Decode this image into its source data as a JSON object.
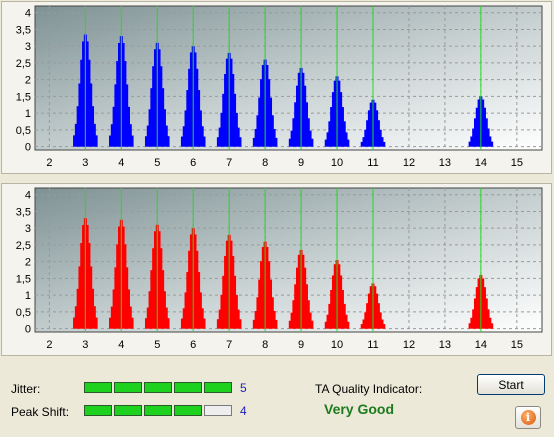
{
  "charts": {
    "x_ticks": [
      "2",
      "3",
      "4",
      "5",
      "6",
      "7",
      "8",
      "9",
      "10",
      "11",
      "12",
      "13",
      "14",
      "15"
    ],
    "y_ticks": [
      "0",
      "0,5",
      "1",
      "1,5",
      "2",
      "2,5",
      "3",
      "3,5",
      "4"
    ],
    "marker_positions": [
      3,
      4,
      5,
      6,
      7,
      8,
      9,
      10,
      11,
      14
    ],
    "colors": {
      "top_bars": "#0000ff",
      "bottom_bars": "#ff0000",
      "marker": "#22dd22",
      "grid": "#9a9a9a"
    }
  },
  "chart_data": [
    {
      "type": "bar",
      "name_hint": "top-histogram",
      "xlim": [
        1.6,
        15.7
      ],
      "ylim": [
        -0.1,
        4.2
      ],
      "clusters": [
        {
          "center": 3,
          "peak": 3.35
        },
        {
          "center": 4,
          "peak": 3.3
        },
        {
          "center": 5,
          "peak": 3.1
        },
        {
          "center": 6,
          "peak": 3.0
        },
        {
          "center": 7,
          "peak": 2.8
        },
        {
          "center": 8,
          "peak": 2.6
        },
        {
          "center": 9,
          "peak": 2.35
        },
        {
          "center": 10,
          "peak": 2.1
        },
        {
          "center": 11,
          "peak": 1.4
        },
        {
          "center": 14,
          "peak": 1.5
        }
      ]
    },
    {
      "type": "bar",
      "name_hint": "bottom-histogram",
      "xlim": [
        1.6,
        15.7
      ],
      "ylim": [
        -0.1,
        4.2
      ],
      "clusters": [
        {
          "center": 3,
          "peak": 3.3
        },
        {
          "center": 4,
          "peak": 3.25
        },
        {
          "center": 5,
          "peak": 3.1
        },
        {
          "center": 6,
          "peak": 3.0
        },
        {
          "center": 7,
          "peak": 2.8
        },
        {
          "center": 8,
          "peak": 2.6
        },
        {
          "center": 9,
          "peak": 2.35
        },
        {
          "center": 10,
          "peak": 2.05
        },
        {
          "center": 11,
          "peak": 1.35
        },
        {
          "center": 14,
          "peak": 1.6
        }
      ]
    }
  ],
  "status": {
    "jitter_label": "Jitter:",
    "jitter_value": "5",
    "jitter_level": 5,
    "peak_shift_label": "Peak Shift:",
    "peak_shift_value": "4",
    "peak_shift_level": 4,
    "meter_segments": 5,
    "quality_label": "TA Quality Indicator:",
    "quality_value": "Very Good",
    "start_label": "Start",
    "info_glyph": "i"
  }
}
